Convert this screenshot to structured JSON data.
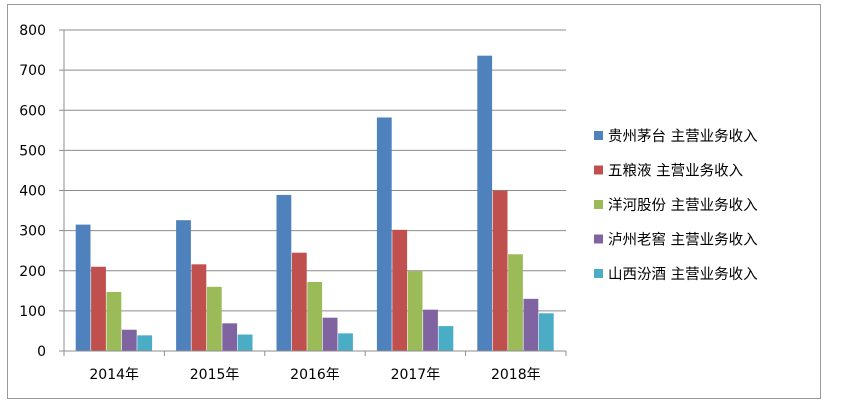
{
  "chart_data": {
    "type": "bar",
    "title": "",
    "xlabel": "",
    "ylabel": "",
    "ylim": [
      0,
      800
    ],
    "yticks": [
      0,
      100,
      200,
      300,
      400,
      500,
      600,
      700,
      800
    ],
    "grid": true,
    "legend_position": "right",
    "categories": [
      "2014年",
      "2015年",
      "2016年",
      "2017年",
      "2018年"
    ],
    "series": [
      {
        "name": "贵州茅台 主营业务收入",
        "color": "#4F81BD",
        "values": [
          315,
          326,
          389,
          582,
          736
        ]
      },
      {
        "name": "五粮液 主营业务收入",
        "color": "#C0504D",
        "values": [
          210,
          216,
          245,
          302,
          400
        ]
      },
      {
        "name": "洋河股份 主营业务收入",
        "color": "#9BBB59",
        "values": [
          147,
          160,
          172,
          199,
          241
        ]
      },
      {
        "name": "泸州老窖 主营业务收入",
        "color": "#8064A2",
        "values": [
          53,
          69,
          83,
          103,
          130
        ]
      },
      {
        "name": "山西汾酒 主营业务收入",
        "color": "#4BACC6",
        "values": [
          39,
          41,
          44,
          62,
          94
        ]
      }
    ]
  }
}
